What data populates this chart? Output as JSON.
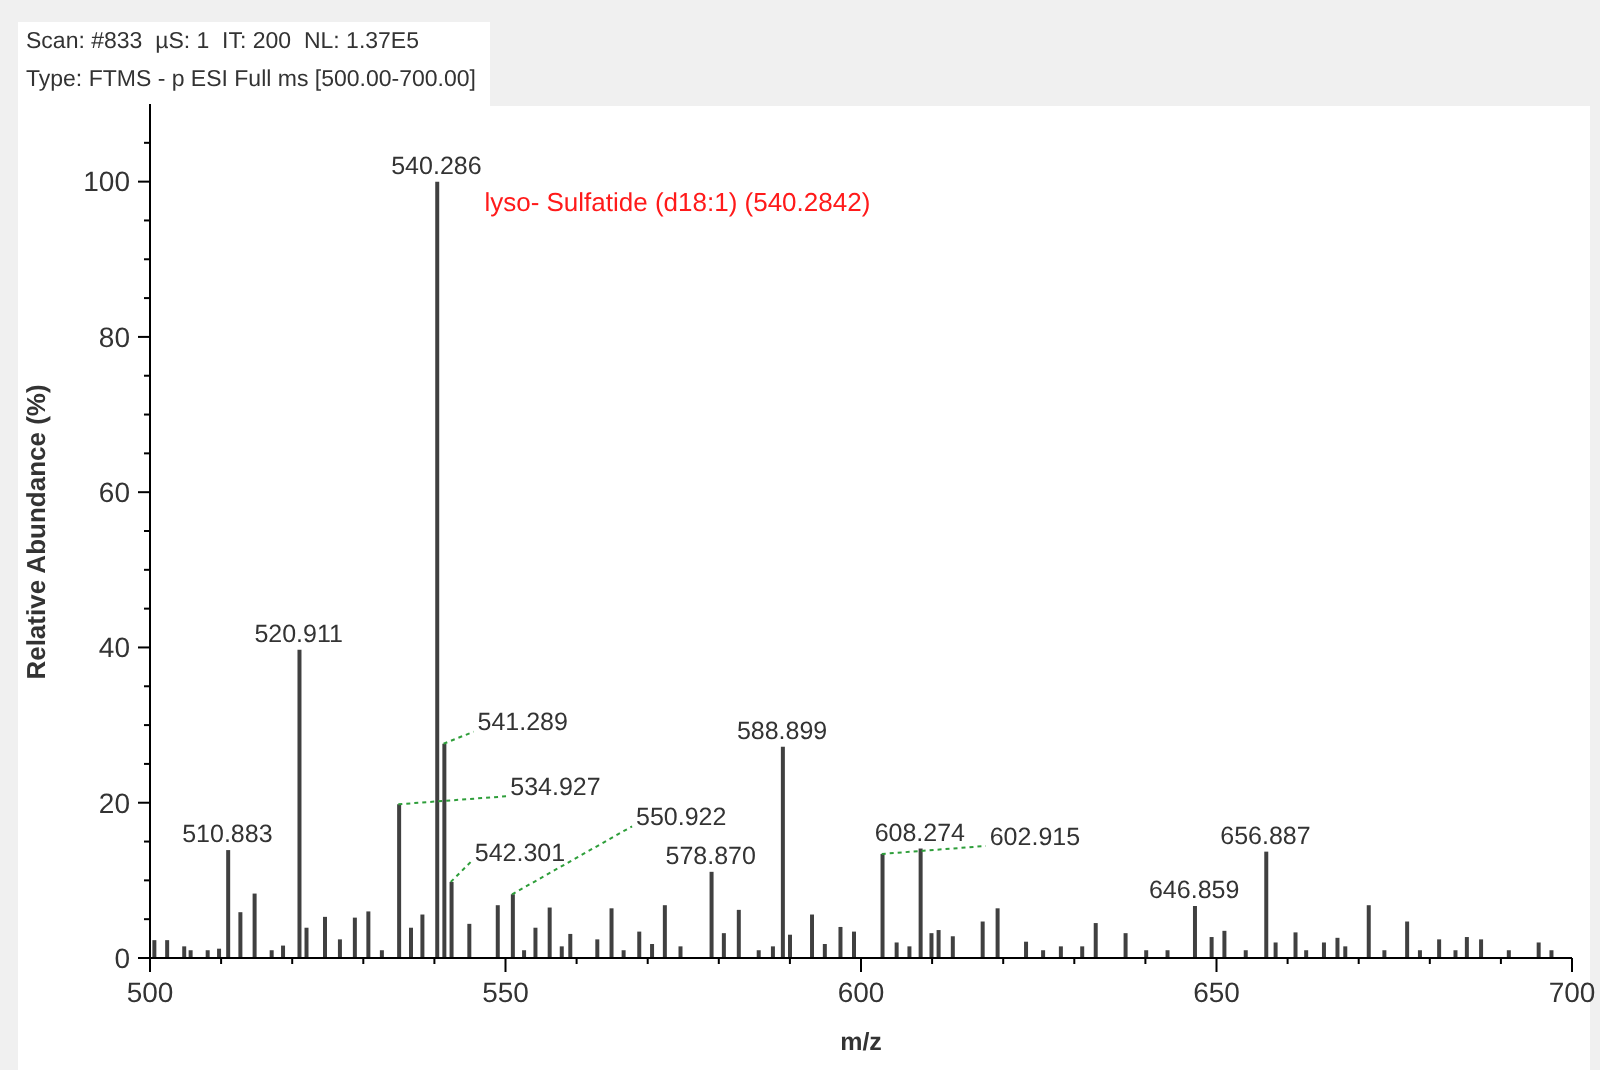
{
  "chart_data": {
    "type": "bar",
    "xlabel": "m/z",
    "ylabel": "Relative Abundance (%)",
    "annotations": [
      "Scan: #833  µS: 1  IT: 200  NL: 1.37E5",
      "Type: FTMS - p ESI Full ms [500.00-700.00]",
      {
        "text": "lyso- Sulfatide (d18:1) (540.2842)",
        "x": 540.286,
        "y": 100
      },
      {
        "text": "510.883",
        "x": 510.883,
        "y": 13.9
      },
      {
        "text": "520.911",
        "x": 520.911,
        "y": 39.7
      },
      {
        "text": "534.927",
        "x": 534.927,
        "y": 19.8
      },
      {
        "text": "540.286",
        "x": 540.286,
        "y": 100
      },
      {
        "text": "541.289",
        "x": 541.289,
        "y": 27.6
      },
      {
        "text": "542.301",
        "x": 542.301,
        "y": 9.8
      },
      {
        "text": "550.922",
        "x": 550.922,
        "y": 8.2
      },
      {
        "text": "578.870",
        "x": 578.87,
        "y": 11.1
      },
      {
        "text": "588.899",
        "x": 588.899,
        "y": 27.2
      },
      {
        "text": "602.915",
        "x": 602.915,
        "y": 13.4
      },
      {
        "text": "608.274",
        "x": 608.274,
        "y": 14.1
      },
      {
        "text": "646.859",
        "x": 646.859,
        "y": 6.7
      },
      {
        "text": "656.887",
        "x": 656.887,
        "y": 13.7
      }
    ],
    "x": [
      500.5,
      502.3,
      504.7,
      505.6,
      508.0,
      509.6,
      510.883,
      512.6,
      514.6,
      517.0,
      518.6,
      520.911,
      521.9,
      524.5,
      526.6,
      528.7,
      530.6,
      532.5,
      534.927,
      536.6,
      538.2,
      540.286,
      541.289,
      542.301,
      544.8,
      548.8,
      550.922,
      552.5,
      554.1,
      556.1,
      557.8,
      559.0,
      562.8,
      564.8,
      566.5,
      568.7,
      570.5,
      572.3,
      574.5,
      578.87,
      580.6,
      582.7,
      585.5,
      587.5,
      588.899,
      589.9,
      593.0,
      594.8,
      597.0,
      598.9,
      602.915,
      604.9,
      606.7,
      608.274,
      609.8,
      610.8,
      612.8,
      617.0,
      619.1,
      623.1,
      625.5,
      628.0,
      631.0,
      632.9,
      637.1,
      640.0,
      643.0,
      646.859,
      649.2,
      651.0,
      654.0,
      656.887,
      658.2,
      661.0,
      662.5,
      665.0,
      666.9,
      668.0,
      671.3,
      673.5,
      676.7,
      678.5,
      681.2,
      683.5,
      685.1,
      687.1,
      691.0,
      695.2,
      697.0
    ],
    "values": [
      2.3,
      2.3,
      1.5,
      1.0,
      1.0,
      1.2,
      13.9,
      5.9,
      8.3,
      1.0,
      1.6,
      39.7,
      3.9,
      5.3,
      2.4,
      5.2,
      6.0,
      1.0,
      19.8,
      3.9,
      5.6,
      100,
      27.6,
      9.8,
      4.4,
      6.8,
      8.2,
      1.0,
      3.9,
      6.5,
      1.5,
      3.1,
      2.4,
      6.4,
      1.0,
      3.4,
      1.8,
      6.8,
      1.5,
      11.1,
      3.2,
      6.2,
      1.0,
      1.5,
      27.2,
      3.0,
      5.6,
      1.8,
      4.0,
      3.4,
      13.4,
      2.0,
      1.5,
      14.1,
      3.2,
      3.6,
      2.8,
      4.7,
      6.4,
      2.1,
      1.0,
      1.5,
      1.5,
      4.5,
      3.2,
      1.0,
      1.0,
      6.7,
      2.7,
      3.5,
      1.0,
      13.7,
      2.0,
      3.3,
      1.0,
      2.0,
      2.6,
      1.5,
      6.8,
      1.0,
      4.7,
      1.0,
      2.4,
      1.0,
      2.7,
      2.4,
      1.0,
      2.0,
      1.0
    ],
    "color": "#404040",
    "xlim": [
      500,
      700
    ],
    "xticks": [
      500,
      {
        "value": 510,
        "label": null
      },
      {
        "value": 520,
        "label": null
      },
      {
        "value": 530,
        "label": null
      },
      {
        "value": 540,
        "label": null
      },
      550,
      {
        "value": 560,
        "label": null
      },
      {
        "value": 570,
        "label": null
      },
      {
        "value": 580,
        "label": null
      },
      {
        "value": 590,
        "label": null
      },
      600,
      {
        "value": 610,
        "label": null
      },
      {
        "value": 620,
        "label": null
      },
      {
        "value": 630,
        "label": null
      },
      {
        "value": 640,
        "label": null
      },
      650,
      {
        "value": 660,
        "label": null
      },
      {
        "value": 670,
        "label": null
      },
      {
        "value": 680,
        "label": null
      },
      {
        "value": 690,
        "label": null
      },
      700
    ],
    "ylim": [
      0,
      110
    ],
    "yticks": [
      0,
      {
        "value": 5,
        "label": null
      },
      {
        "value": 10,
        "label": null
      },
      {
        "value": 15,
        "label": null
      },
      20,
      {
        "value": 25,
        "label": null
      },
      {
        "value": 30,
        "label": null
      },
      {
        "value": 35,
        "label": null
      },
      40,
      {
        "value": 45,
        "label": null
      },
      {
        "value": 50,
        "label": null
      },
      {
        "value": 55,
        "label": null
      },
      60,
      {
        "value": 65,
        "label": null
      },
      {
        "value": 70,
        "label": null
      },
      {
        "value": 75,
        "label": null
      },
      80,
      {
        "value": 85,
        "label": null
      },
      {
        "value": 90,
        "label": null
      },
      {
        "value": 95,
        "label": null
      },
      100,
      {
        "value": 105,
        "label": null
      }
    ]
  }
}
